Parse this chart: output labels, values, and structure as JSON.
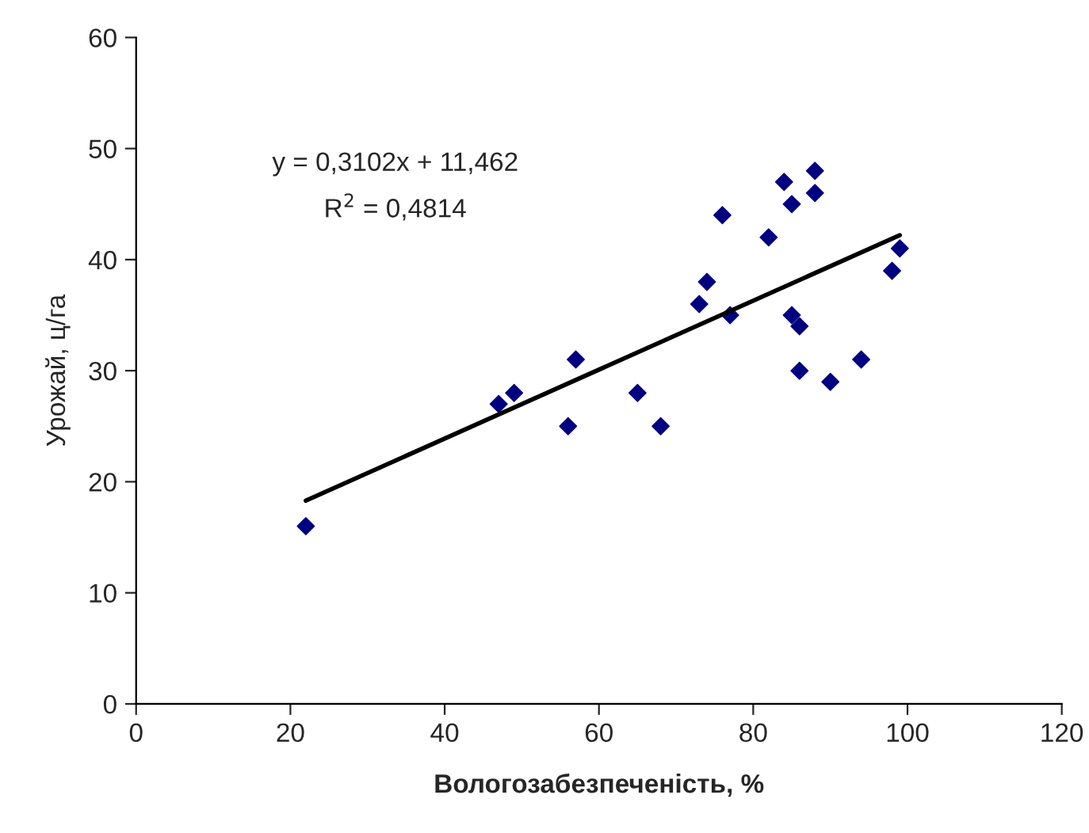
{
  "chart_data": {
    "type": "scatter",
    "xlabel": "Вологозабезпеченість, %",
    "ylabel": "Урожай, ц/га",
    "xlim": [
      0,
      120
    ],
    "xticks": [
      0,
      20,
      40,
      60,
      80,
      100,
      120
    ],
    "ylim": [
      0,
      60
    ],
    "yticks": [
      0,
      10,
      20,
      30,
      40,
      50,
      60
    ],
    "grid": false,
    "legend": false,
    "marker": "diamond",
    "series": [
      {
        "color": "#000080",
        "x": [
          22,
          47,
          49,
          56,
          57,
          65,
          68,
          73,
          74,
          76,
          77,
          82,
          84,
          85,
          85,
          86,
          86,
          88,
          88,
          90,
          94,
          98,
          99
        ],
        "values": [
          16,
          27,
          28,
          25,
          31,
          28,
          25,
          36,
          38,
          44,
          35,
          42,
          47,
          45,
          35,
          34,
          30,
          48,
          46,
          29,
          31,
          39,
          41
        ]
      },
      {
        "type": "line",
        "color": "#000000",
        "x": [
          22,
          99
        ],
        "values": [
          18.3,
          42.2
        ],
        "marker": "none"
      }
    ],
    "annotations": [
      "y = 0,3102x + 11,462",
      "R$^{2}$ = 0,4814"
    ]
  }
}
